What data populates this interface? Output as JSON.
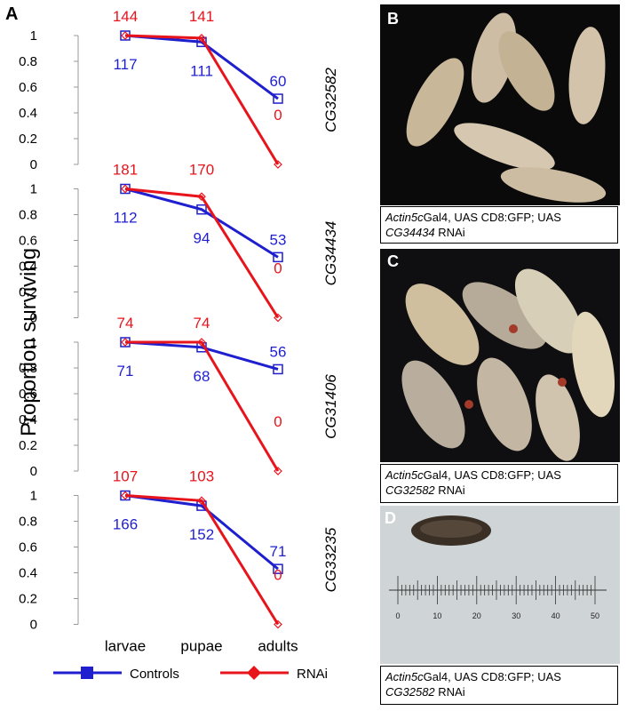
{
  "panel_a": {
    "label": "A",
    "ylabel": "Proportion surviving",
    "legend": {
      "controls": "Controls",
      "rnai": "RNAi"
    },
    "colors": {
      "controls": "#1f1fcf",
      "rnai": "#e8141c"
    }
  },
  "chart_data": [
    {
      "type": "line",
      "gene": "CG32582",
      "categories": [
        "larvae",
        "pupae",
        "adults"
      ],
      "ylim": [
        0,
        1
      ],
      "yticks": [
        "0",
        "0.2",
        "0.4",
        "0.6",
        "0.8",
        "1"
      ],
      "series": [
        {
          "name": "Controls",
          "values": [
            1.0,
            0.95,
            0.51
          ],
          "labels": [
            "117",
            "111",
            "60"
          ]
        },
        {
          "name": "RNAi",
          "values": [
            1.0,
            0.98,
            0.0
          ],
          "labels": [
            "144",
            "141",
            "0"
          ]
        }
      ]
    },
    {
      "type": "line",
      "gene": "CG34434",
      "categories": [
        "larvae",
        "pupae",
        "adults"
      ],
      "ylim": [
        0,
        1
      ],
      "yticks": [
        "0",
        "0.2",
        "0.4",
        "0.6",
        "0.8",
        "1"
      ],
      "series": [
        {
          "name": "Controls",
          "values": [
            1.0,
            0.84,
            0.47
          ],
          "labels": [
            "112",
            "94",
            "53"
          ]
        },
        {
          "name": "RNAi",
          "values": [
            1.0,
            0.94,
            0.0
          ],
          "labels": [
            "181",
            "170",
            "0"
          ]
        }
      ]
    },
    {
      "type": "line",
      "gene": "CG31406",
      "categories": [
        "larvae",
        "pupae",
        "adults"
      ],
      "ylim": [
        0,
        1
      ],
      "yticks": [
        "0",
        "0.2",
        "0.4",
        "0.6",
        "0.8",
        "1"
      ],
      "series": [
        {
          "name": "Controls",
          "values": [
            1.0,
            0.96,
            0.79
          ],
          "labels": [
            "71",
            "68",
            "56"
          ]
        },
        {
          "name": "RNAi",
          "values": [
            1.0,
            1.0,
            0.0
          ],
          "labels": [
            "74",
            "74",
            "0"
          ]
        }
      ]
    },
    {
      "type": "line",
      "gene": "CG33235",
      "categories": [
        "larvae",
        "pupae",
        "adults"
      ],
      "ylim": [
        0,
        1
      ],
      "yticks": [
        "0",
        "0.2",
        "0.4",
        "0.6",
        "0.8",
        "1"
      ],
      "series": [
        {
          "name": "Controls",
          "values": [
            1.0,
            0.92,
            0.43
          ],
          "labels": [
            "166",
            "152",
            "71"
          ]
        },
        {
          "name": "RNAi",
          "values": [
            1.0,
            0.96,
            0.0
          ],
          "labels": [
            "107",
            "103",
            "0"
          ]
        }
      ]
    }
  ],
  "photos": [
    {
      "letter": "B",
      "caption_pre": "Actin5c",
      "caption_mid": "Gal4, UAS CD8:GFP; UAS ",
      "caption_gene": "CG34434",
      "caption_post": " RNAi"
    },
    {
      "letter": "C",
      "caption_pre": "Actin5c",
      "caption_mid": "Gal4, UAS CD8:GFP; UAS ",
      "caption_gene": "CG32582",
      "caption_post": " RNAi"
    },
    {
      "letter": "D",
      "caption_pre": "Actin5c",
      "caption_mid": "Gal4, UAS CD8:GFP; UAS ",
      "caption_gene": "CG32582",
      "caption_post": " RNAi",
      "ruler_labels": [
        "0",
        "10",
        "20",
        "30",
        "40",
        "50"
      ]
    }
  ]
}
